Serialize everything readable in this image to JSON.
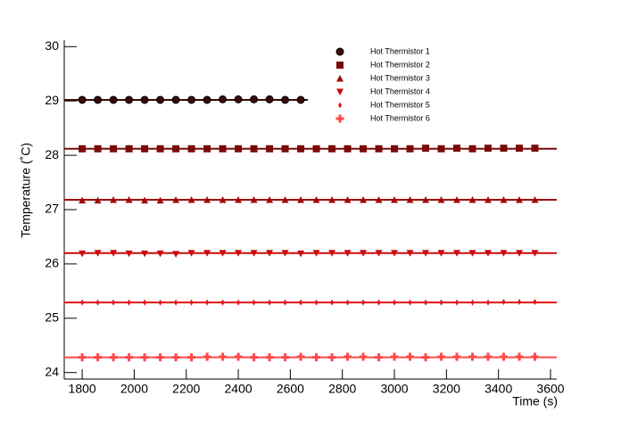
{
  "chart_data": {
    "type": "scatter",
    "x_label": "Time (s)",
    "y_label": "Temperature (˚C)",
    "xlim": [
      1731,
      3624
    ],
    "ylim": [
      23.88,
      30.12
    ],
    "xticks": [
      1800,
      2000,
      2200,
      2400,
      2600,
      2800,
      3000,
      3200,
      3400,
      3600
    ],
    "yticks": [
      24,
      25,
      26,
      27,
      28,
      29,
      30
    ],
    "x": [
      1800,
      1860,
      1920,
      1980,
      2040,
      2100,
      2160,
      2220,
      2280,
      2340,
      2400,
      2460,
      2520,
      2580,
      2640,
      2700,
      2760,
      2820,
      2880,
      2940,
      3000,
      3060,
      3120,
      3180,
      3240,
      3300,
      3360,
      3420,
      3480,
      3540
    ],
    "series": [
      {
        "name": "Hot Thermistor 1",
        "color": "#3a0a0a",
        "marker": "circle",
        "fit": 29.02,
        "values": [
          29.02,
          29.02,
          29.02,
          29.02,
          29.02,
          29.02,
          29.02,
          29.02,
          29.02,
          29.03,
          29.03,
          29.03,
          29.03,
          29.02,
          29.02,
          null,
          null,
          null,
          null,
          null,
          null,
          null,
          null,
          null,
          null,
          null,
          null,
          null,
          null,
          null
        ]
      },
      {
        "name": "Hot Thermistor 2",
        "color": "#7a0a0a",
        "marker": "square",
        "fit": 28.12,
        "values": [
          28.12,
          28.12,
          28.12,
          28.12,
          28.12,
          28.12,
          28.12,
          28.12,
          28.12,
          28.12,
          28.12,
          28.12,
          28.12,
          28.12,
          28.12,
          28.12,
          28.12,
          28.12,
          28.12,
          28.12,
          28.12,
          28.12,
          28.13,
          28.12,
          28.13,
          28.12,
          28.13,
          28.13,
          28.13,
          28.13
        ]
      },
      {
        "name": "Hot Thermistor 3",
        "color": "#a00a0a",
        "marker": "triangle-up",
        "fit": 27.18,
        "values": [
          27.17,
          27.17,
          27.18,
          27.18,
          27.17,
          27.17,
          27.18,
          27.18,
          27.18,
          27.18,
          27.18,
          27.18,
          27.18,
          27.18,
          27.18,
          27.18,
          27.18,
          27.18,
          27.18,
          27.18,
          27.18,
          27.18,
          27.18,
          27.18,
          27.18,
          27.18,
          27.18,
          27.18,
          27.18,
          27.18
        ]
      },
      {
        "name": "Hot Thermistor 4",
        "color": "#cc0a0a",
        "marker": "triangle-down",
        "fit": 26.2,
        "values": [
          26.19,
          26.2,
          26.2,
          26.19,
          26.19,
          26.19,
          26.18,
          26.2,
          26.2,
          26.2,
          26.2,
          26.2,
          26.2,
          26.2,
          26.19,
          26.2,
          26.2,
          26.2,
          26.2,
          26.2,
          26.2,
          26.2,
          26.2,
          26.2,
          26.2,
          26.2,
          26.2,
          26.2,
          26.2,
          26.2
        ]
      },
      {
        "name": "Hot Thermistor 5",
        "color": "#e01414",
        "marker": "diamond",
        "fit": 25.29,
        "values": [
          25.29,
          25.29,
          25.29,
          25.29,
          25.29,
          25.29,
          25.29,
          25.29,
          25.29,
          25.29,
          25.29,
          25.29,
          25.29,
          25.29,
          25.29,
          25.29,
          25.29,
          25.29,
          25.29,
          25.29,
          25.29,
          25.29,
          25.29,
          25.29,
          25.29,
          25.29,
          25.29,
          25.3,
          25.3,
          25.3
        ]
      },
      {
        "name": "Hot Thermistor 6",
        "color": "#ff4a4a",
        "marker": "cross",
        "fit": 24.28,
        "values": [
          24.28,
          24.28,
          24.28,
          24.28,
          24.28,
          24.28,
          24.28,
          24.28,
          24.29,
          24.29,
          24.29,
          24.28,
          24.28,
          24.28,
          24.29,
          24.28,
          24.28,
          24.29,
          24.29,
          24.28,
          24.29,
          24.29,
          24.28,
          24.29,
          24.29,
          24.29,
          24.29,
          24.29,
          24.29,
          24.29
        ]
      }
    ]
  }
}
